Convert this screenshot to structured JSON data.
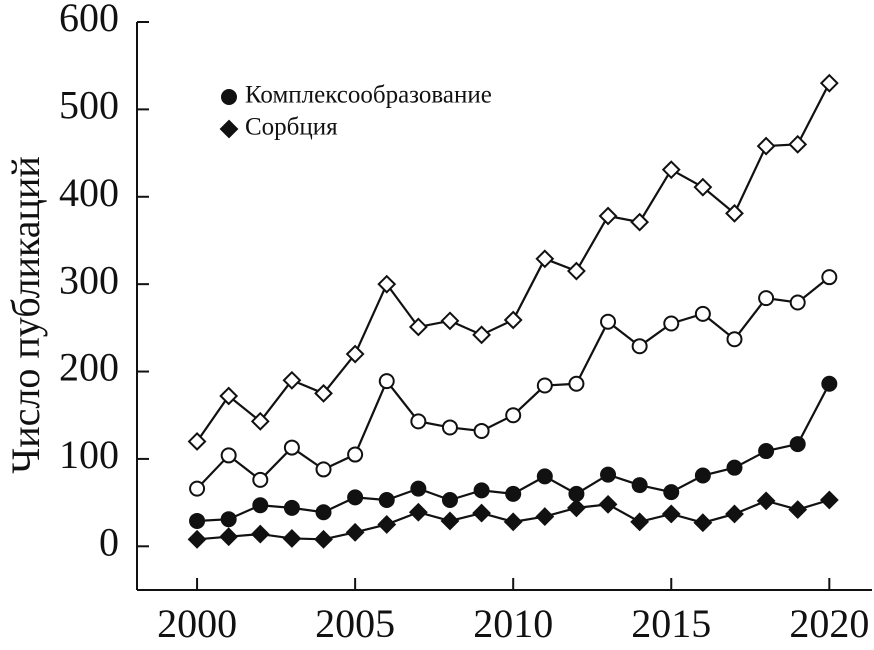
{
  "chart_data": {
    "type": "line",
    "y_label": "Число публикаций",
    "x": [
      2000,
      2001,
      2002,
      2003,
      2004,
      2005,
      2006,
      2007,
      2008,
      2009,
      2010,
      2011,
      2012,
      2013,
      2014,
      2015,
      2016,
      2017,
      2018,
      2019,
      2020
    ],
    "xlim": [
      1998.1,
      2021.35
    ],
    "xticks": [
      2000,
      2005,
      2010,
      2015,
      2020
    ],
    "ylim": [
      -50,
      600
    ],
    "yticks": [
      0,
      100,
      200,
      300,
      400,
      500,
      600
    ],
    "series": [
      {
        "color": "#111111",
        "marker": "diamond",
        "fill": "#ffffff",
        "values": [
          120,
          172,
          143,
          190,
          175,
          220,
          300,
          251,
          258,
          242,
          259,
          329,
          315,
          378,
          371,
          431,
          411,
          381,
          458,
          460,
          530
        ]
      },
      {
        "color": "#111111",
        "marker": "circle",
        "fill": "#ffffff",
        "values": [
          66,
          104,
          76,
          113,
          88,
          105,
          189,
          143,
          136,
          132,
          150,
          184,
          186,
          257,
          229,
          255,
          266,
          237,
          284,
          279,
          308
        ]
      },
      {
        "name": "Комплексообразование",
        "color": "#111111",
        "marker": "circle",
        "fill": "#111111",
        "values": [
          29,
          31,
          47,
          44,
          39,
          56,
          53,
          66,
          53,
          64,
          60,
          80,
          60,
          82,
          70,
          62,
          81,
          90,
          109,
          117,
          186
        ]
      },
      {
        "name": "Сорбция",
        "color": "#111111",
        "marker": "diamond",
        "fill": "#111111",
        "values": [
          8,
          11,
          14,
          9,
          8,
          16,
          25,
          39,
          29,
          38,
          28,
          34,
          44,
          48,
          28,
          37,
          27,
          37,
          52,
          42,
          53
        ]
      }
    ]
  }
}
